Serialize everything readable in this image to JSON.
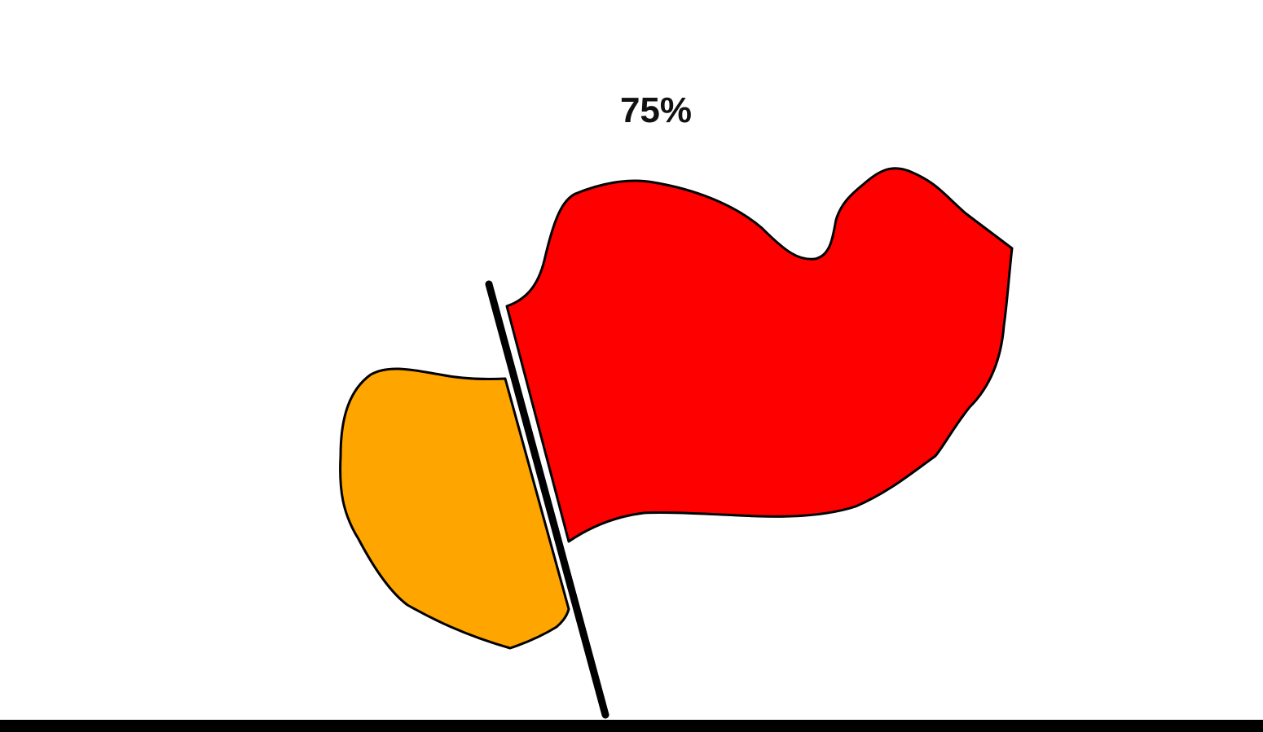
{
  "game": {
    "progress_text": "75%",
    "progress_percent": 75
  },
  "shapes": {
    "large_piece_color": "#FF0000",
    "small_piece_color": "#FFA500",
    "outline_color": "#000000",
    "cut_line_color": "#000000"
  },
  "footer": {
    "bar_color": "#000000"
  }
}
